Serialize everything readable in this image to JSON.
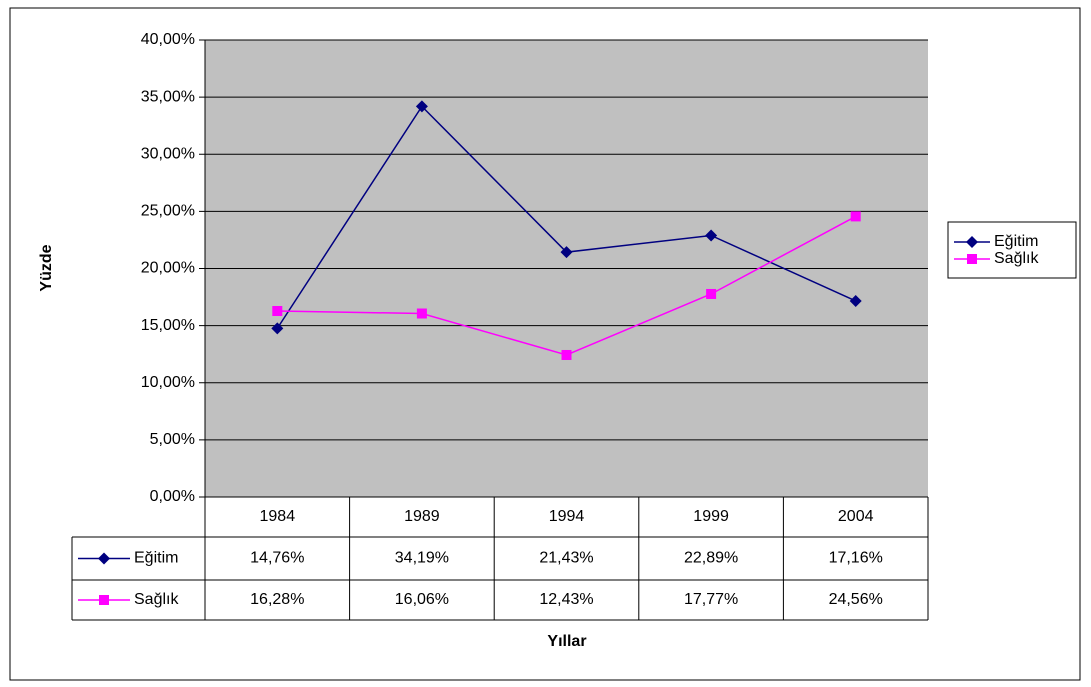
{
  "chart_data": {
    "type": "line",
    "categories": [
      "1984",
      "1989",
      "1994",
      "1999",
      "2004"
    ],
    "series": [
      {
        "name": "Eğitim",
        "color": "#000080",
        "marker": "diamond",
        "values": [
          14.76,
          34.19,
          21.43,
          22.89,
          17.16
        ],
        "value_labels": [
          "14,76%",
          "34,19%",
          "21,43%",
          "22,89%",
          "17,16%"
        ]
      },
      {
        "name": "Sağlık",
        "color": "#ff00ff",
        "marker": "square",
        "values": [
          16.28,
          16.06,
          12.43,
          17.77,
          24.56
        ],
        "value_labels": [
          "16,28%",
          "16,06%",
          "12,43%",
          "17,77%",
          "24,56%"
        ]
      }
    ],
    "ylabel": "Yüzde",
    "xlabel": "Yıllar",
    "ylim": [
      0,
      40
    ],
    "yticks": [
      {
        "value": 0,
        "label": "0,00%"
      },
      {
        "value": 5,
        "label": "5,00%"
      },
      {
        "value": 10,
        "label": "10,00%"
      },
      {
        "value": 15,
        "label": "15,00%"
      },
      {
        "value": 20,
        "label": "20,00%"
      },
      {
        "value": 25,
        "label": "25,00%"
      },
      {
        "value": 30,
        "label": "30,00%"
      },
      {
        "value": 35,
        "label": "35,00%"
      },
      {
        "value": 40,
        "label": "40,00%"
      }
    ],
    "grid": true,
    "legend": "right",
    "data_table": true
  }
}
